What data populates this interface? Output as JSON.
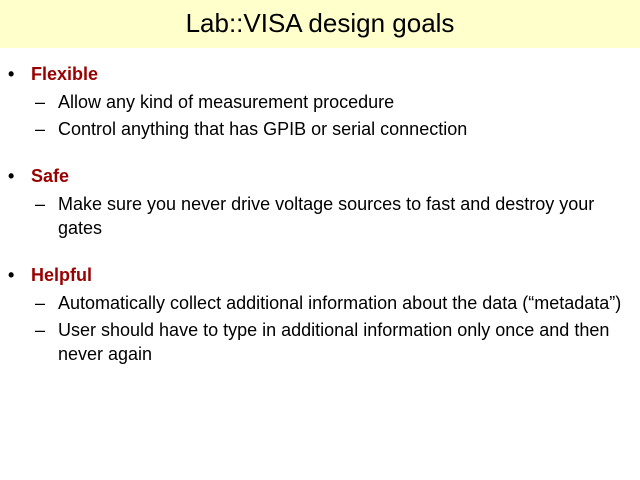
{
  "slide": {
    "title": "Lab::VISA design goals",
    "bullet_glyph": "•",
    "dash_glyph": "–",
    "colors": {
      "title_background": "#ffffcc",
      "heading": "#990000",
      "text": "#000000"
    },
    "goals": [
      {
        "label": "Flexible",
        "points": [
          "Allow any kind of measurement procedure",
          "Control anything that has GPIB or serial connection"
        ]
      },
      {
        "label": "Safe",
        "points": [
          "Make sure you never drive voltage sources to fast and destroy your gates"
        ]
      },
      {
        "label": "Helpful",
        "points": [
          "Automatically collect additional information about the data (“metadata”)",
          "User should have to type in additional information only once and then never again"
        ]
      }
    ]
  }
}
